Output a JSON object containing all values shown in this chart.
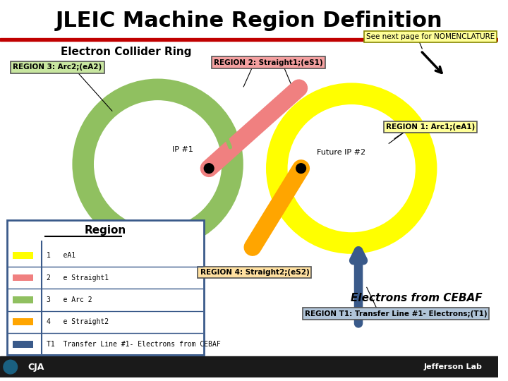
{
  "title": "JLEIC Machine Region Definition",
  "subtitle": "Electron Collider Ring",
  "background_color": "#ffffff",
  "title_fontsize": 22,
  "header_bar_color": "#c00000",
  "footer_bar_color": "#1a1a1a",
  "regions": {
    "region1_label": "REGION 1: Arc1;(eA1)",
    "region2_label": "REGION 2: Straight1;(eS1)",
    "region3_label": "REGION 3: Arc2;(eA2)",
    "region4_label": "REGION 4: Straight2;(eS2)",
    "regionT1_label": "REGION T1: Transfer Line #1- Electrons;(T1)"
  },
  "legend_title": "Region",
  "legend_items": [
    {
      "color": "#ffff00",
      "label": "1   eA1"
    },
    {
      "color": "#f08080",
      "label": "2   e Straight1"
    },
    {
      "color": "#90c060",
      "label": "3   e Arc 2"
    },
    {
      "color": "#ffa500",
      "label": "4   e Straight2"
    },
    {
      "color": "#3a5a8a",
      "label": "T1  Transfer Line #1- Electrons from CEBAF"
    }
  ],
  "note_label": "See next page for NOMENCLATURE",
  "cebaf_label": "Electrons from CEBAF",
  "colors": {
    "yellow": "#ffff00",
    "salmon": "#f08080",
    "lightgreen": "#90c060",
    "orange": "#ffa500",
    "navy": "#3a5a8a",
    "region1_bg": "#ffff99",
    "region2_bg": "#f4a0a0",
    "region3_bg": "#c8e6a0",
    "region4_bg": "#ffe0a0",
    "regionT1_bg": "#b0c4d8",
    "note_bg": "#ffff99",
    "legend_border": "#3a5a8a"
  }
}
